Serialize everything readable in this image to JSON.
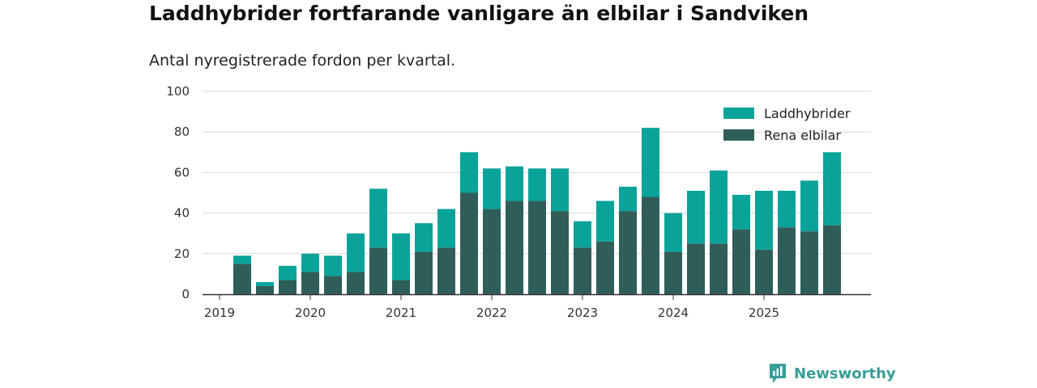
{
  "title": "Laddhybrider fortfarande vanligare än elbilar i Sandviken",
  "subtitle": "Antal nyregistrerade fordon per kvartal.",
  "brand": {
    "name": "Newsworthy",
    "icon": "newsworthy-logo-icon"
  },
  "colors": {
    "hybrid": "#0aa39a",
    "electric": "#2f5e59",
    "grid": "#d9d9d9",
    "axis": "#333333"
  },
  "chart_data": {
    "type": "bar",
    "stacked": true,
    "title": "Laddhybrider fortfarande vanligare än elbilar i Sandviken",
    "subtitle": "Antal nyregistrerade fordon per kvartal.",
    "xlabel": "",
    "ylabel": "",
    "ylim": [
      0,
      100
    ],
    "yticks": [
      0,
      20,
      40,
      60,
      80,
      100
    ],
    "legend_position": "top-right",
    "year_labels": [
      {
        "label": "2019",
        "index": 0
      },
      {
        "label": "2020",
        "index": 4
      },
      {
        "label": "2021",
        "index": 8
      },
      {
        "label": "2022",
        "index": 12
      },
      {
        "label": "2023",
        "index": 16
      },
      {
        "label": "2024",
        "index": 20
      },
      {
        "label": "2025",
        "index": 24
      }
    ],
    "categories": [
      "2019 Q1",
      "2019 Q2",
      "2019 Q3",
      "2019 Q4",
      "2020 Q1",
      "2020 Q2",
      "2020 Q3",
      "2020 Q4",
      "2021 Q1",
      "2021 Q2",
      "2021 Q3",
      "2021 Q4",
      "2022 Q1",
      "2022 Q2",
      "2022 Q3",
      "2022 Q4",
      "2023 Q1",
      "2023 Q2",
      "2023 Q3",
      "2023 Q4",
      "2024 Q1",
      "2024 Q2",
      "2024 Q3",
      "2024 Q4",
      "2025 Q1",
      "2025 Q2",
      "2025 Q3",
      "2025 Q4"
    ],
    "series": [
      {
        "name": "Rena elbilar",
        "color": "#2f5e59",
        "values": [
          0,
          15,
          4,
          7,
          11,
          9,
          11,
          23,
          7,
          21,
          23,
          50,
          42,
          46,
          46,
          41,
          23,
          26,
          41,
          48,
          21,
          25,
          25,
          32,
          22,
          33,
          31,
          34
        ]
      },
      {
        "name": "Laddhybrider",
        "color": "#0aa39a",
        "values": [
          0,
          4,
          2,
          7,
          9,
          10,
          19,
          29,
          23,
          14,
          19,
          20,
          20,
          17,
          16,
          21,
          13,
          20,
          12,
          34,
          19,
          26,
          36,
          17,
          29,
          18,
          25,
          36
        ]
      }
    ]
  }
}
